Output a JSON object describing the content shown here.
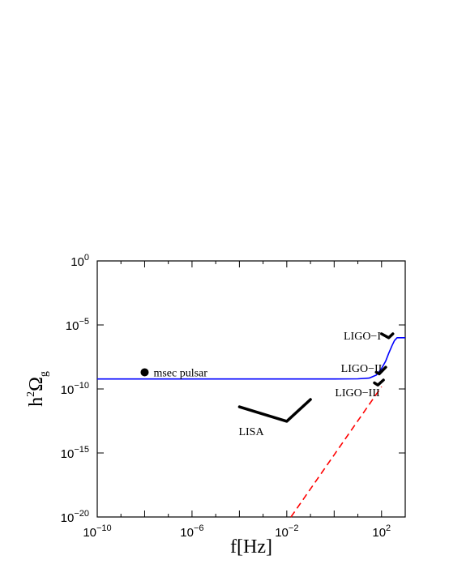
{
  "chart_data": {
    "type": "line",
    "title": "",
    "xlabel": "f[Hz]",
    "ylabel": "h2Ωg",
    "xscale": "log",
    "yscale": "log",
    "xlim": [
      1e-10,
      1000
    ],
    "ylim": [
      1e-20,
      1
    ],
    "grid": false,
    "x_ticks": [
      {
        "base": "10",
        "exp": "−10",
        "value": 1e-10
      },
      {
        "base": "10",
        "exp": "−6",
        "value": 1e-06
      },
      {
        "base": "10",
        "exp": "−2",
        "value": 0.01
      },
      {
        "base": "10",
        "exp": "2",
        "value": 100
      }
    ],
    "y_ticks": [
      {
        "base": "10",
        "exp": "0",
        "value": 1
      },
      {
        "base": "10",
        "exp": "−5",
        "value": 1e-05
      },
      {
        "base": "10",
        "exp": "−10",
        "value": 1e-10
      },
      {
        "base": "10",
        "exp": "−15",
        "value": 1e-15
      },
      {
        "base": "10",
        "exp": "−20",
        "value": 1e-20
      }
    ],
    "series": [
      {
        "style": "solid",
        "color": "#0000ff",
        "points": [
          [
            1e-10,
            6e-10
          ],
          [
            1,
            6e-10
          ],
          [
            10,
            6.2e-10
          ],
          [
            30,
            7e-10
          ],
          [
            60,
            1.2e-09
          ],
          [
            100,
            4e-09
          ],
          [
            150,
            1.5e-08
          ],
          [
            200,
            6e-08
          ],
          [
            280,
            2.5e-07
          ],
          [
            350,
            6e-07
          ],
          [
            450,
            1e-06
          ],
          [
            600,
            1e-06
          ],
          [
            1000,
            1e-06
          ]
        ]
      },
      {
        "style": "dashed",
        "color": "#ff0000",
        "points": [
          [
            0.015,
            1e-20
          ],
          [
            100,
            1.5e-10
          ]
        ]
      }
    ],
    "annotations": [
      {
        "label": "msec pulsar",
        "marker": "dot",
        "point": [
          1e-08,
          2e-09
        ]
      },
      {
        "label": "LISA",
        "curve": [
          [
            0.0001,
            4e-12
          ],
          [
            0.01,
            3e-13
          ],
          [
            0.1,
            1.5e-11
          ]
        ]
      },
      {
        "label": "LIGO−I",
        "curve": [
          [
            100,
            2e-06
          ],
          [
            200,
            1e-06
          ],
          [
            300,
            2e-06
          ]
        ]
      },
      {
        "label": "LIGO−II",
        "curve": [
          [
            60,
            2e-09
          ],
          [
            80,
            1.5e-09
          ],
          [
            150,
            5e-09
          ]
        ]
      },
      {
        "label": "LIGO−III",
        "curve": [
          [
            50,
            3e-10
          ],
          [
            70,
            2e-10
          ],
          [
            120,
            5e-10
          ]
        ]
      }
    ]
  }
}
